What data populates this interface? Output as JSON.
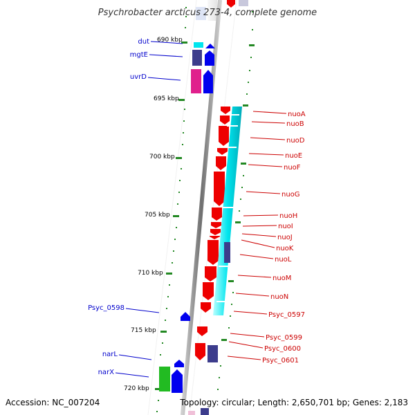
{
  "title": "Psychrobacter arcticus 273-4, complete genome",
  "footer": {
    "accession": "Accession: NC_007204",
    "topology": "Topology: circular; Length: 2,650,701 bp; Genes: 2,183"
  },
  "ticks": [
    "690 kbp",
    "695 kbp",
    "700 kbp",
    "705 kbp",
    "710 kbp",
    "715 kbp",
    "720 kbp"
  ],
  "left_labels": [
    "dut",
    "mgtE",
    "uvrD",
    "Psyc_0598",
    "narL",
    "narX"
  ],
  "right_labels": [
    "nuoA",
    "nuoB",
    "nuoD",
    "nuoE",
    "nuoF",
    "nuoG",
    "nuoH",
    "nuoI",
    "nuoJ",
    "nuoK",
    "nuoL",
    "nuoM",
    "nuoN",
    "Psyc_0597",
    "Psyc_0599",
    "Psyc_0600",
    "Psyc_0601"
  ],
  "colors": {
    "blue_label": "#0000cc",
    "red_label": "#cc0000",
    "gene_red": "#ee0000",
    "gene_blue": "#0000ee",
    "gene_cyan": "#00e5ee",
    "gene_navy": "#3c3c8c",
    "gene_magenta": "#e0208c",
    "gene_green": "#22bb22",
    "axis": "#888888",
    "dots": "#228822"
  }
}
